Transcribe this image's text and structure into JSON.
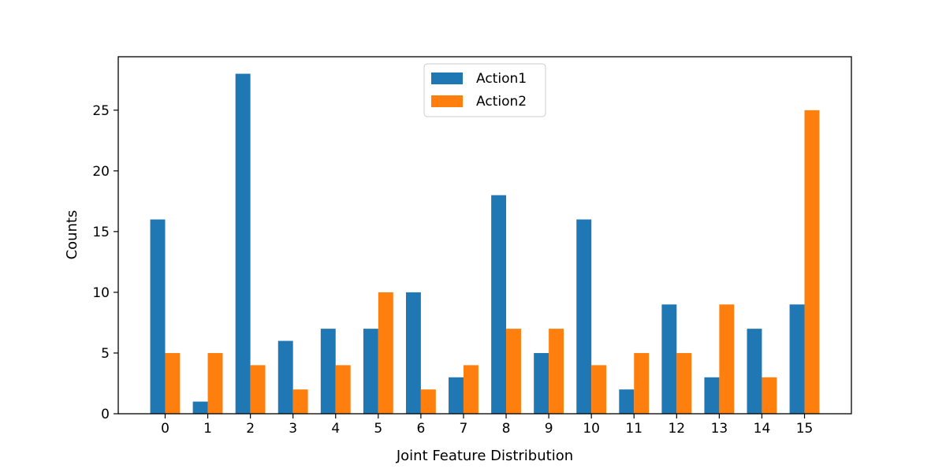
{
  "chart_data": {
    "type": "bar",
    "title": "",
    "xlabel": "Joint Feature Distribution",
    "ylabel": "Counts",
    "categories": [
      "0",
      "1",
      "2",
      "3",
      "4",
      "5",
      "6",
      "7",
      "8",
      "9",
      "10",
      "11",
      "12",
      "13",
      "14",
      "15"
    ],
    "series": [
      {
        "name": "Action1",
        "color": "#1f77b4",
        "values": [
          16,
          1,
          28,
          6,
          7,
          7,
          10,
          3,
          18,
          5,
          16,
          2,
          9,
          3,
          7,
          9
        ]
      },
      {
        "name": "Action2",
        "color": "#ff7f0e",
        "values": [
          5,
          5,
          4,
          2,
          4,
          10,
          2,
          4,
          7,
          7,
          4,
          5,
          5,
          9,
          3,
          25
        ]
      }
    ],
    "xlim": [
      -1.1,
      16.1
    ],
    "ylim": [
      0,
      29.4
    ],
    "yticks": [
      0,
      5,
      10,
      15,
      20,
      25
    ],
    "grid": false,
    "legend_position": "top-center"
  }
}
